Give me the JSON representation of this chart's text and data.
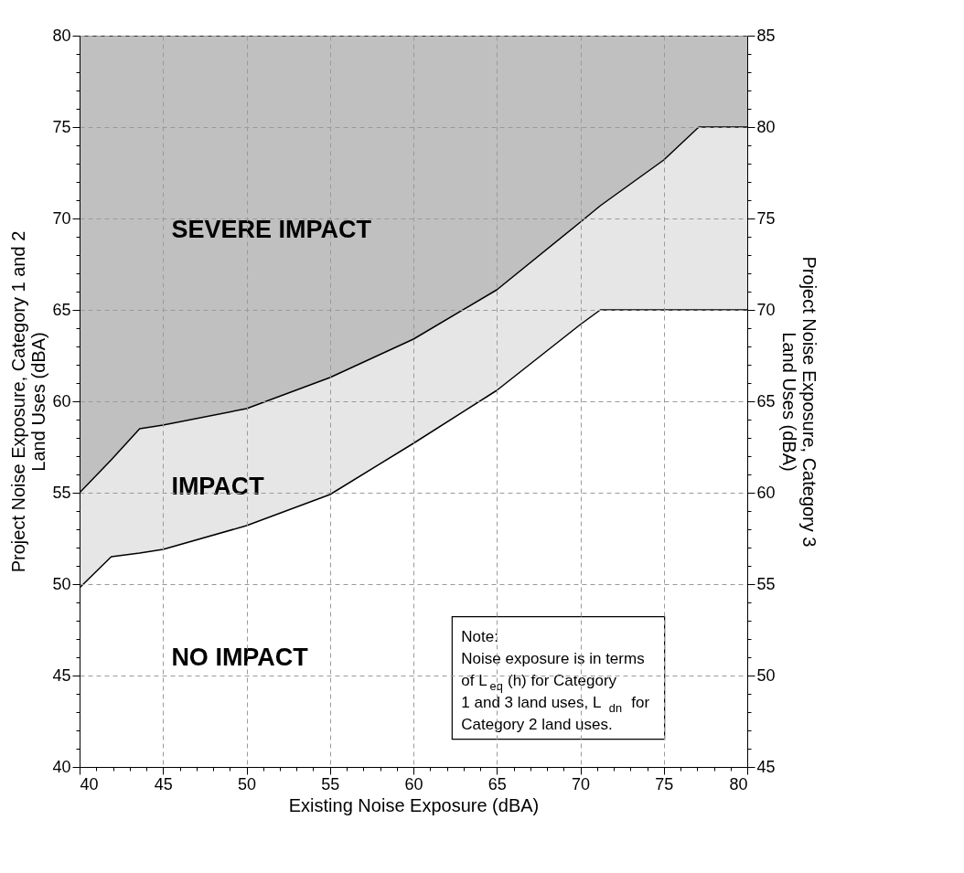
{
  "chart_data": {
    "type": "area",
    "xlabel": "Existing Noise Exposure (dBA)",
    "ylabel": "Project Noise Exposure, Category 1 and 2\nLand Uses (dBA)",
    "y2label": "Project Noise Exposure, Category 3\nLand Uses (dBA)",
    "x": [
      40,
      41.9,
      43.6,
      45,
      50,
      55,
      60,
      65,
      70,
      71.2,
      75,
      77.1,
      80
    ],
    "series": [
      {
        "name": "SEVERE IMPACT",
        "color": "#c0c0c0",
        "values": [
          80,
          80,
          80,
          80,
          80,
          80,
          80,
          80,
          80,
          80,
          80,
          80,
          80
        ]
      },
      {
        "name": "IMPACT",
        "color": "#e6e6e6",
        "values": [
          55,
          56.8,
          58.5,
          58.7,
          59.6,
          61.3,
          63.4,
          66.1,
          69.8,
          70.7,
          73.2,
          75,
          75
        ]
      },
      {
        "type": "line",
        "color": "#000000",
        "values": [
          49.8,
          51.5,
          51.7,
          51.9,
          53.2,
          54.9,
          57.7,
          60.6,
          64.2,
          65,
          65,
          65,
          65
        ]
      }
    ],
    "xlim": [
      40,
      80
    ],
    "ylim": [
      40,
      80
    ],
    "y2lim": [
      45,
      85
    ],
    "xticks": [
      40,
      {
        "value": 41,
        "label": null
      },
      {
        "value": 42,
        "label": null
      },
      {
        "value": 43,
        "label": null
      },
      {
        "value": 44,
        "label": null
      },
      45,
      {
        "value": 46,
        "label": null
      },
      {
        "value": 47,
        "label": null
      },
      {
        "value": 48,
        "label": null
      },
      {
        "value": 49,
        "label": null
      },
      50,
      {
        "value": 51,
        "label": null
      },
      {
        "value": 52,
        "label": null
      },
      {
        "value": 53,
        "label": null
      },
      {
        "value": 54,
        "label": null
      },
      55,
      {
        "value": 56,
        "label": null
      },
      {
        "value": 57,
        "label": null
      },
      {
        "value": 58,
        "label": null
      },
      {
        "value": 59,
        "label": null
      },
      60,
      {
        "value": 61,
        "label": null
      },
      {
        "value": 62,
        "label": null
      },
      {
        "value": 63,
        "label": null
      },
      {
        "value": 64,
        "label": null
      },
      65,
      {
        "value": 66,
        "label": null
      },
      {
        "value": 67,
        "label": null
      },
      {
        "value": 68,
        "label": null
      },
      {
        "value": 69,
        "label": null
      },
      70,
      {
        "value": 71,
        "label": null
      },
      {
        "value": 72,
        "label": null
      },
      {
        "value": 73,
        "label": null
      },
      {
        "value": 74,
        "label": null
      },
      75,
      {
        "value": 76,
        "label": null
      },
      {
        "value": 77,
        "label": null
      },
      {
        "value": 78,
        "label": null
      },
      {
        "value": 79,
        "label": null
      },
      80
    ],
    "yticks": [
      40,
      {
        "value": 41,
        "label": null
      },
      {
        "value": 42,
        "label": null
      },
      {
        "value": 43,
        "label": null
      },
      {
        "value": 44,
        "label": null
      },
      45,
      {
        "value": 46,
        "label": null
      },
      {
        "value": 47,
        "label": null
      },
      {
        "value": 48,
        "label": null
      },
      {
        "value": 49,
        "label": null
      },
      50,
      {
        "value": 51,
        "label": null
      },
      {
        "value": 52,
        "label": null
      },
      {
        "value": 53,
        "label": null
      },
      {
        "value": 54,
        "label": null
      },
      55,
      {
        "value": 56,
        "label": null
      },
      {
        "value": 57,
        "label": null
      },
      {
        "value": 58,
        "label": null
      },
      {
        "value": 59,
        "label": null
      },
      60,
      {
        "value": 61,
        "label": null
      },
      {
        "value": 62,
        "label": null
      },
      {
        "value": 63,
        "label": null
      },
      {
        "value": 64,
        "label": null
      },
      65,
      {
        "value": 66,
        "label": null
      },
      {
        "value": 67,
        "label": null
      },
      {
        "value": 68,
        "label": null
      },
      {
        "value": 69,
        "label": null
      },
      70,
      {
        "value": 71,
        "label": null
      },
      {
        "value": 72,
        "label": null
      },
      {
        "value": 73,
        "label": null
      },
      {
        "value": 74,
        "label": null
      },
      75,
      {
        "value": 76,
        "label": null
      },
      {
        "value": 77,
        "label": null
      },
      {
        "value": 78,
        "label": null
      },
      {
        "value": 79,
        "label": null
      },
      80
    ],
    "y2ticks": [
      45,
      {
        "value": 46,
        "label": null
      },
      {
        "value": 47,
        "label": null
      },
      {
        "value": 48,
        "label": null
      },
      {
        "value": 49,
        "label": null
      },
      50,
      {
        "value": 51,
        "label": null
      },
      {
        "value": 52,
        "label": null
      },
      {
        "value": 53,
        "label": null
      },
      {
        "value": 54,
        "label": null
      },
      55,
      {
        "value": 56,
        "label": null
      },
      {
        "value": 57,
        "label": null
      },
      {
        "value": 58,
        "label": null
      },
      {
        "value": 59,
        "label": null
      },
      60,
      {
        "value": 61,
        "label": null
      },
      {
        "value": 62,
        "label": null
      },
      {
        "value": 63,
        "label": null
      },
      {
        "value": 64,
        "label": null
      },
      65,
      {
        "value": 66,
        "label": null
      },
      {
        "value": 67,
        "label": null
      },
      {
        "value": 68,
        "label": null
      },
      {
        "value": 69,
        "label": null
      },
      70,
      {
        "value": 71,
        "label": null
      },
      {
        "value": 72,
        "label": null
      },
      {
        "value": 73,
        "label": null
      },
      {
        "value": 74,
        "label": null
      },
      75,
      {
        "value": 76,
        "label": null
      },
      {
        "value": 77,
        "label": null
      },
      {
        "value": 78,
        "label": null
      },
      {
        "value": 79,
        "label": null
      },
      80,
      {
        "value": 81,
        "label": null
      },
      {
        "value": 82,
        "label": null
      },
      {
        "value": 83,
        "label": null
      },
      {
        "value": 84,
        "label": null
      },
      85
    ],
    "grid": true,
    "annotations": [
      "NO IMPACT",
      "Note:\nNoise exposure is in terms\nof L$_{eq}$ (h) for Category\n1 and 3 land uses, L$_{dn}$  for\nCategory 2 land uses."
    ]
  }
}
